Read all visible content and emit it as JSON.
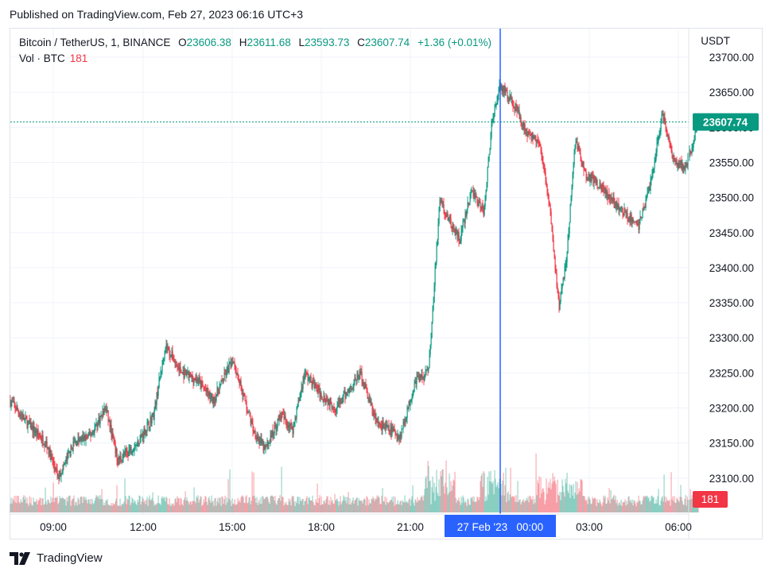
{
  "published": "Published on TradingView.com, Feb 27, 2023 06:16 UTC+3",
  "brand": "TradingView",
  "legend": {
    "symbol": "Bitcoin / TetherUS, 1, BINANCE",
    "o_label": "O",
    "o": "23606.38",
    "h_label": "H",
    "h": "23611.68",
    "l_label": "L",
    "l": "23593.73",
    "c_label": "C",
    "c": "23607.74",
    "change": "+1.36 (+0.01%)",
    "vol_label": "Vol · BTC",
    "vol_value": "181"
  },
  "colors": {
    "up": "#089981",
    "down": "#f23645",
    "crosshair": "#2962ff",
    "grid": "#f0f3fa"
  },
  "chart_data": {
    "type": "candlestick",
    "currency": "USDT",
    "y_ticks": [
      23100,
      23150,
      23200,
      23250,
      23300,
      23350,
      23400,
      23450,
      23500,
      23550,
      23600,
      23650,
      23700
    ],
    "y_tick_labels": [
      "23100.00",
      "23150.00",
      "23200.00",
      "23250.00",
      "23300.00",
      "23350.00",
      "23400.00",
      "23450.00",
      "23500.00",
      "23550.00",
      "23600.00",
      "23650.00",
      "23700.00"
    ],
    "x_tick_labels": [
      "09:00",
      "12:00",
      "15:00",
      "18:00",
      "21:00",
      "03:00",
      "06:00"
    ],
    "last_price": 23607.74,
    "last_price_label": "23607.74",
    "last_volume_label": "181",
    "crosshair_label": "27 Feb '23   00:00",
    "price_path": [
      [
        0,
        23210
      ],
      [
        20,
        23180
      ],
      [
        45,
        23150
      ],
      [
        60,
        23100
      ],
      [
        80,
        23150
      ],
      [
        100,
        23160
      ],
      [
        120,
        23200
      ],
      [
        135,
        23125
      ],
      [
        160,
        23150
      ],
      [
        180,
        23190
      ],
      [
        195,
        23290
      ],
      [
        215,
        23250
      ],
      [
        235,
        23240
      ],
      [
        255,
        23210
      ],
      [
        280,
        23270
      ],
      [
        305,
        23170
      ],
      [
        320,
        23140
      ],
      [
        340,
        23190
      ],
      [
        355,
        23170
      ],
      [
        370,
        23250
      ],
      [
        390,
        23220
      ],
      [
        410,
        23200
      ],
      [
        440,
        23250
      ],
      [
        460,
        23180
      ],
      [
        490,
        23160
      ],
      [
        510,
        23240
      ],
      [
        525,
        23250
      ],
      [
        530,
        23320
      ],
      [
        540,
        23500
      ],
      [
        550,
        23470
      ],
      [
        565,
        23440
      ],
      [
        580,
        23510
      ],
      [
        595,
        23480
      ],
      [
        605,
        23600
      ],
      [
        615,
        23660
      ],
      [
        630,
        23640
      ],
      [
        650,
        23590
      ],
      [
        665,
        23580
      ],
      [
        680,
        23470
      ],
      [
        690,
        23340
      ],
      [
        700,
        23420
      ],
      [
        710,
        23580
      ],
      [
        725,
        23530
      ],
      [
        740,
        23520
      ],
      [
        760,
        23490
      ],
      [
        790,
        23460
      ],
      [
        805,
        23520
      ],
      [
        820,
        23620
      ],
      [
        835,
        23550
      ],
      [
        850,
        23545
      ],
      [
        865,
        23607
      ]
    ]
  }
}
